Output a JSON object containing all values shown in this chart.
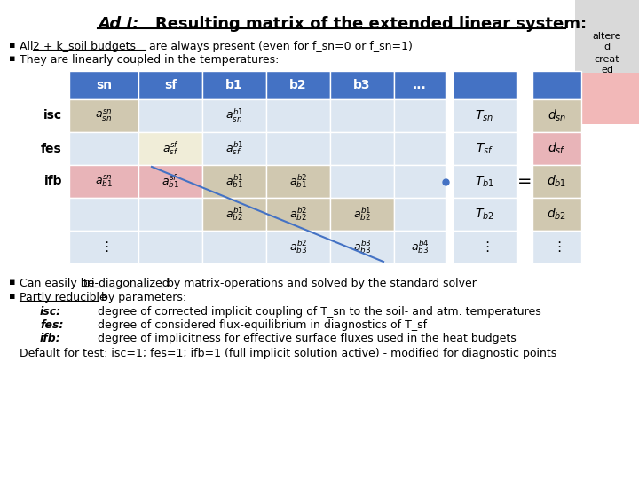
{
  "title_part1": "Ad I:",
  "title_part2": "    Resulting matrix of the extended linear system:",
  "bg_color": "#ffffff",
  "bullet1a": "All ",
  "bullet1b": "2 + k_soil budgets",
  "bullet1c": " are always present (even for f_sn=0 or f_sn=1)",
  "bullet2": "They are linearly coupled in the temperatures:",
  "bullet3a": "Can easily be ",
  "bullet3b": "tri-diagonalized",
  "bullet3c": " by matrix-operations and solved by the standard solver",
  "bullet4a": "Partly reducible",
  "bullet4b": " by parameters:",
  "isc_label": "isc:",
  "fes_label": "fes:",
  "ifb_label": "ifb:",
  "isc_def": "degree of corrected implicit coupling of T_sn to the soil- and atm. temperatures",
  "fes_def": "degree of considered flux-equilibrium in diagnostics of T_sf",
  "ifb_def": "degree of implicitness for effective surface fluxes used in the heat budgets",
  "default_line": "Default for test: isc=1; fes=1; ifb=1 (full implicit solution active) - modified for diagnostic points",
  "col_headers": [
    "sn",
    "sf",
    "b1",
    "b2",
    "b3",
    "..."
  ],
  "row_labels": [
    "isc",
    "fes",
    "ifb"
  ],
  "header_bg": "#4472c4",
  "cell_empty": "#dce6f1",
  "cell_tan": "#d0c8b0",
  "cell_pink": "#e8b4b8",
  "cell_cream": "#f0edd8",
  "sidebar_altered": "#d9d9d9",
  "sidebar_created": "#f2b8b8"
}
